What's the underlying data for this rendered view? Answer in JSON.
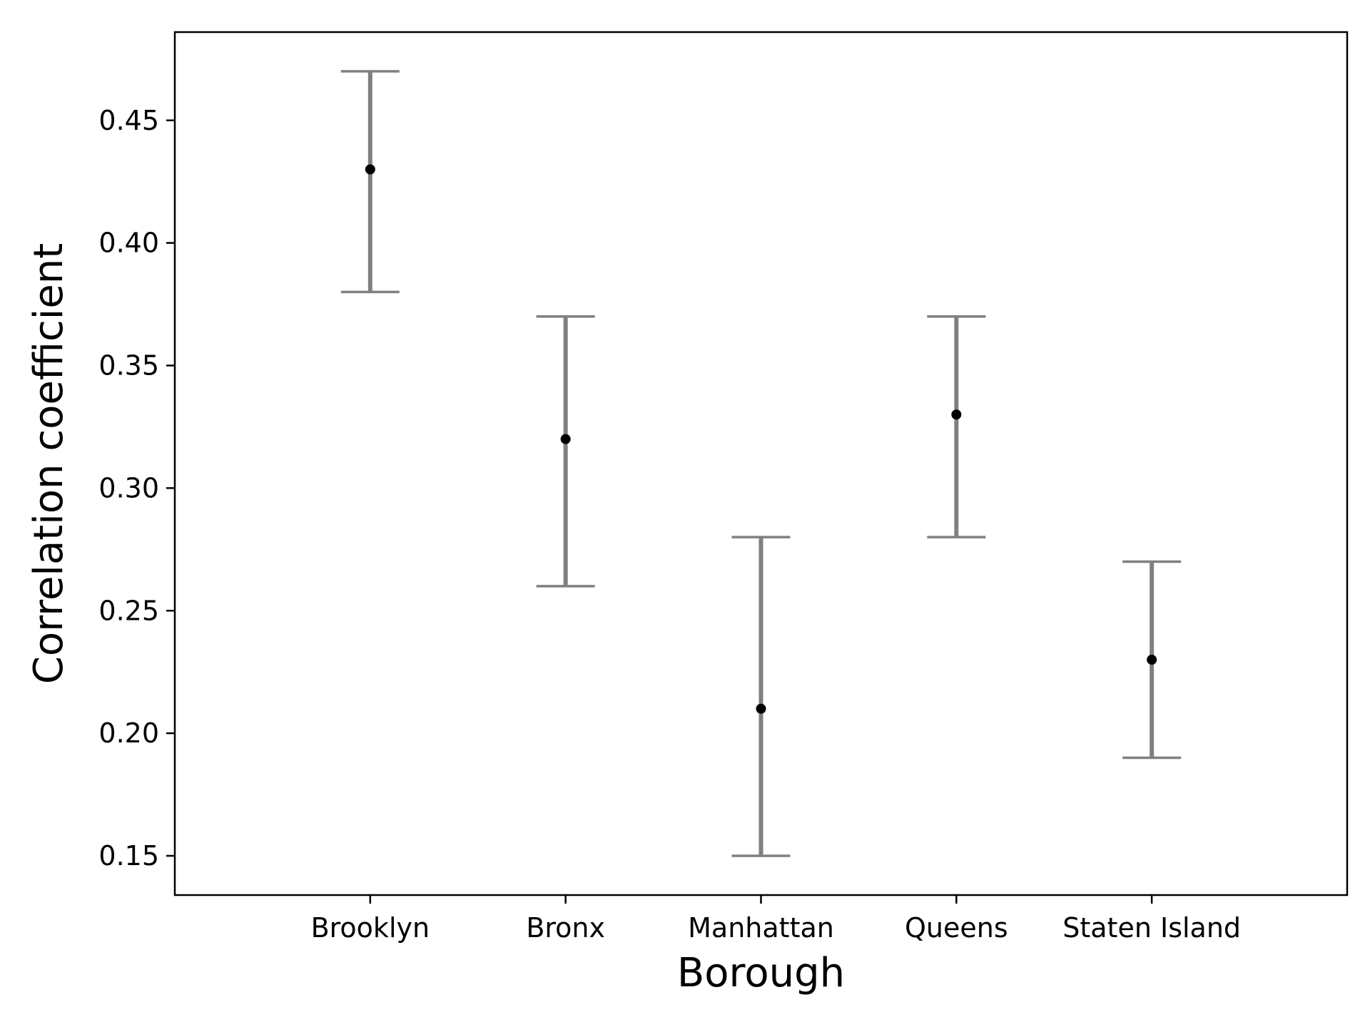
{
  "chart_data": {
    "type": "scatter",
    "title": "",
    "xlabel": "Borough",
    "ylabel": "Correlation coefficient",
    "categories": [
      "Brooklyn",
      "Bronx",
      "Manhattan",
      "Queens",
      "Staten Island"
    ],
    "values": [
      0.43,
      0.32,
      0.21,
      0.33,
      0.23
    ],
    "error_low": [
      0.38,
      0.26,
      0.15,
      0.28,
      0.19
    ],
    "error_high": [
      0.47,
      0.37,
      0.28,
      0.37,
      0.27
    ],
    "ylim": [
      0.134,
      0.486
    ],
    "yticks": [
      0.15,
      0.2,
      0.25,
      0.3,
      0.35,
      0.4,
      0.45
    ],
    "ytick_labels": [
      "0.15",
      "0.20",
      "0.25",
      "0.30",
      "0.35",
      "0.40",
      "0.45"
    ],
    "grid": false,
    "colors": {
      "point": "#000000",
      "error_bar": "#808080",
      "axis": "#000000"
    }
  }
}
